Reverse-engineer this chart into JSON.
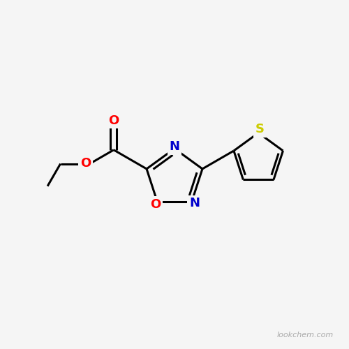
{
  "background_color": "#f5f5f5",
  "bond_color": "#000000",
  "bond_width": 2.2,
  "atom_colors": {
    "O": "#ff0000",
    "N": "#0000cc",
    "S": "#cccc00",
    "C": "#000000"
  },
  "font_size": 13,
  "watermark": "lookchem.com",
  "watermark_color": "#aaaaaa",
  "watermark_fontsize": 8
}
